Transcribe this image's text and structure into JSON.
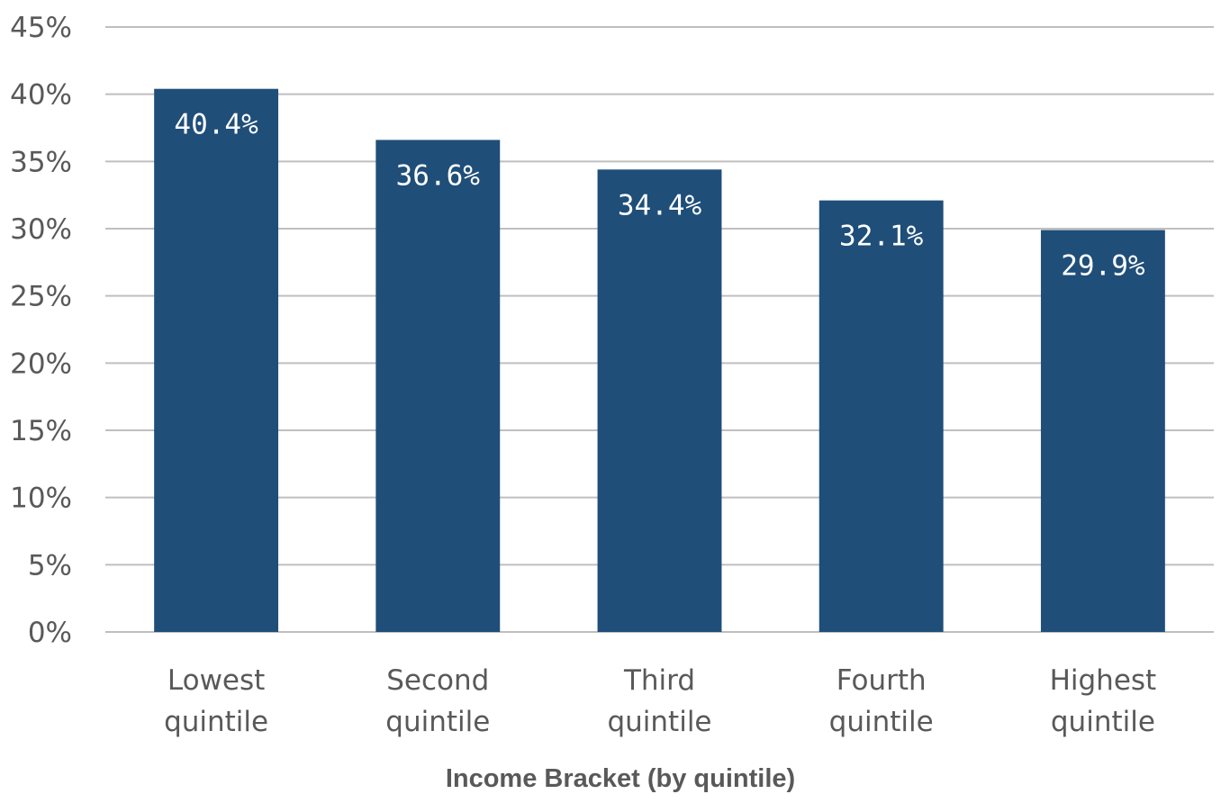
{
  "chart_data": {
    "type": "bar",
    "categories": [
      [
        "Lowest",
        "quintile"
      ],
      [
        "Second",
        "quintile"
      ],
      [
        "Third",
        "quintile"
      ],
      [
        "Fourth",
        "quintile"
      ],
      [
        "Highest",
        "quintile"
      ]
    ],
    "values": [
      40.4,
      36.6,
      34.4,
      32.1,
      29.9
    ],
    "data_labels": [
      "40.4%",
      "36.6%",
      "34.4%",
      "32.1%",
      "29.9%"
    ],
    "title": "",
    "xlabel": "Income Bracket (by quintile)",
    "ylabel": "",
    "ylim": [
      0,
      45
    ],
    "yticks": [
      0,
      5,
      10,
      15,
      20,
      25,
      30,
      35,
      40,
      45
    ],
    "ytick_labels": [
      "0%",
      "5%",
      "10%",
      "15%",
      "20%",
      "25%",
      "30%",
      "35%",
      "40%",
      "45%"
    ],
    "grid": true,
    "legend": "none",
    "bar_color": "#1f4e79",
    "gridline_color": "#bfbfbf",
    "text_color": "#595959"
  }
}
